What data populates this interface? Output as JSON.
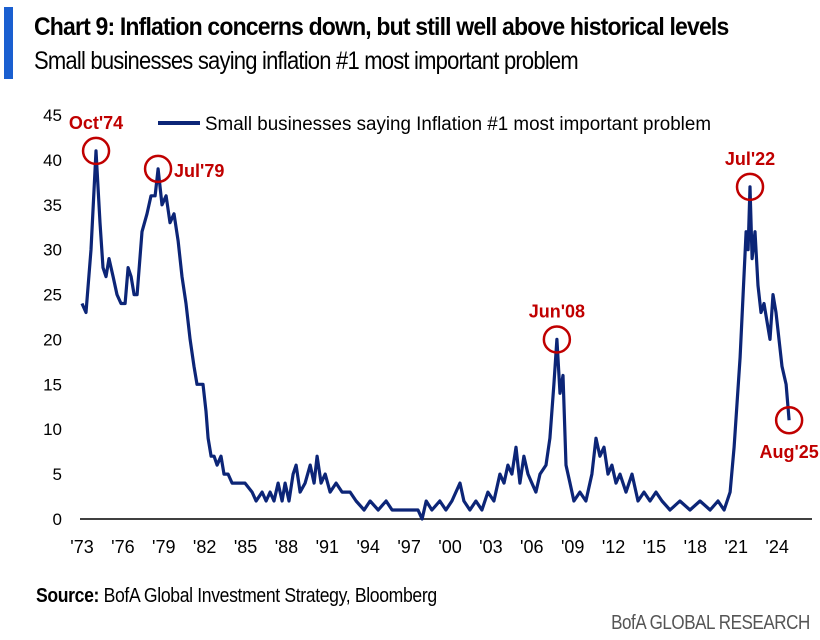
{
  "chart_data": {
    "type": "line",
    "title": "Chart 9: Inflation concerns down, but still well above historical levels",
    "subtitle": "Small businesses saying inflation #1 most important problem",
    "xlabel": "",
    "ylabel": "",
    "ylim": [
      0,
      45
    ],
    "yticks": [
      0,
      5,
      10,
      15,
      20,
      25,
      30,
      35,
      40,
      45
    ],
    "xticks": [
      {
        "year": 1973.75,
        "label": "'73"
      },
      {
        "year": 1976.75,
        "label": "'76"
      },
      {
        "year": 1979.75,
        "label": "'79"
      },
      {
        "year": 1982.75,
        "label": "'82"
      },
      {
        "year": 1985.75,
        "label": "'85"
      },
      {
        "year": 1988.75,
        "label": "'88"
      },
      {
        "year": 1991.75,
        "label": "'91"
      },
      {
        "year": 1994.75,
        "label": "'94"
      },
      {
        "year": 1997.75,
        "label": "'97"
      },
      {
        "year": 2000.75,
        "label": "'00"
      },
      {
        "year": 2003.75,
        "label": "'03"
      },
      {
        "year": 2006.75,
        "label": "'06"
      },
      {
        "year": 2009.75,
        "label": "'09"
      },
      {
        "year": 2012.75,
        "label": "'12"
      },
      {
        "year": 2015.75,
        "label": "'15"
      },
      {
        "year": 2018.75,
        "label": "'18"
      },
      {
        "year": 2021.75,
        "label": "'21"
      },
      {
        "year": 2024.75,
        "label": "'24"
      }
    ],
    "legend": "top-center",
    "grid": false,
    "series": [
      {
        "name": "Small businesses saying Inflation #1 most important problem",
        "color": "#0c2577",
        "points": [
          [
            1973.75,
            24
          ],
          [
            1974.04,
            23
          ],
          [
            1974.41,
            30
          ],
          [
            1974.78,
            41
          ],
          [
            1975.07,
            33
          ],
          [
            1975.29,
            28
          ],
          [
            1975.51,
            27
          ],
          [
            1975.73,
            29
          ],
          [
            1976.03,
            27
          ],
          [
            1976.32,
            25
          ],
          [
            1976.61,
            24
          ],
          [
            1976.91,
            24
          ],
          [
            1977.13,
            28
          ],
          [
            1977.35,
            27
          ],
          [
            1977.57,
            25
          ],
          [
            1977.79,
            25
          ],
          [
            1978.15,
            32
          ],
          [
            1978.52,
            34
          ],
          [
            1978.81,
            36
          ],
          [
            1979.11,
            36
          ],
          [
            1979.33,
            39
          ],
          [
            1979.62,
            35
          ],
          [
            1979.92,
            36
          ],
          [
            1980.21,
            33
          ],
          [
            1980.5,
            34
          ],
          [
            1980.8,
            31
          ],
          [
            1981.09,
            27
          ],
          [
            1981.38,
            24
          ],
          [
            1981.68,
            20
          ],
          [
            1981.97,
            17
          ],
          [
            1982.19,
            15
          ],
          [
            1982.63,
            15
          ],
          [
            1982.85,
            12
          ],
          [
            1983.0,
            9
          ],
          [
            1983.22,
            7
          ],
          [
            1983.44,
            7
          ],
          [
            1983.66,
            6
          ],
          [
            1983.95,
            7
          ],
          [
            1984.17,
            5
          ],
          [
            1984.47,
            5
          ],
          [
            1984.76,
            4
          ],
          [
            1985.71,
            4
          ],
          [
            1986.23,
            3
          ],
          [
            1986.52,
            2
          ],
          [
            1986.96,
            3
          ],
          [
            1987.26,
            2
          ],
          [
            1987.55,
            3
          ],
          [
            1987.84,
            2
          ],
          [
            1988.14,
            4
          ],
          [
            1988.43,
            2
          ],
          [
            1988.65,
            4
          ],
          [
            1988.94,
            2
          ],
          [
            1989.24,
            5
          ],
          [
            1989.46,
            6
          ],
          [
            1989.75,
            3
          ],
          [
            1990.12,
            4
          ],
          [
            1990.49,
            6
          ],
          [
            1990.78,
            4
          ],
          [
            1991.0,
            7
          ],
          [
            1991.29,
            4
          ],
          [
            1991.59,
            5
          ],
          [
            1991.95,
            3
          ],
          [
            1992.39,
            4
          ],
          [
            1992.83,
            3
          ],
          [
            1993.42,
            3
          ],
          [
            1993.86,
            2
          ],
          [
            1994.45,
            1
          ],
          [
            1994.89,
            2
          ],
          [
            1995.48,
            1
          ],
          [
            1996.06,
            2
          ],
          [
            1996.5,
            1
          ],
          [
            1997.09,
            1
          ],
          [
            1997.81,
            1
          ],
          [
            1998.4,
            1
          ],
          [
            1998.7,
            0
          ],
          [
            1999.0,
            2
          ],
          [
            1999.42,
            1
          ],
          [
            2000.0,
            2
          ],
          [
            2000.45,
            1
          ],
          [
            2000.89,
            2
          ],
          [
            2001.18,
            3
          ],
          [
            2001.48,
            4
          ],
          [
            2001.77,
            2
          ],
          [
            2002.21,
            1
          ],
          [
            2002.65,
            2
          ],
          [
            2003.09,
            1
          ],
          [
            2003.53,
            3
          ],
          [
            2003.97,
            2
          ],
          [
            2004.41,
            5
          ],
          [
            2004.71,
            4
          ],
          [
            2005.0,
            6
          ],
          [
            2005.29,
            5
          ],
          [
            2005.59,
            8
          ],
          [
            2005.88,
            4
          ],
          [
            2006.17,
            7
          ],
          [
            2006.47,
            5
          ],
          [
            2006.76,
            4
          ],
          [
            2007.05,
            3
          ],
          [
            2007.35,
            5
          ],
          [
            2007.79,
            6
          ],
          [
            2008.08,
            9
          ],
          [
            2008.37,
            15
          ],
          [
            2008.59,
            20
          ],
          [
            2008.82,
            14
          ],
          [
            2009.04,
            16
          ],
          [
            2009.26,
            6
          ],
          [
            2009.55,
            4
          ],
          [
            2009.84,
            2
          ],
          [
            2010.28,
            3
          ],
          [
            2010.72,
            2
          ],
          [
            2011.16,
            5
          ],
          [
            2011.46,
            9
          ],
          [
            2011.75,
            7
          ],
          [
            2012.05,
            8
          ],
          [
            2012.34,
            5
          ],
          [
            2012.63,
            6
          ],
          [
            2012.93,
            4
          ],
          [
            2013.22,
            5
          ],
          [
            2013.66,
            3
          ],
          [
            2014.1,
            5
          ],
          [
            2014.54,
            2
          ],
          [
            2014.98,
            3
          ],
          [
            2015.42,
            2
          ],
          [
            2015.86,
            3
          ],
          [
            2016.3,
            2
          ],
          [
            2016.89,
            1
          ],
          [
            2017.62,
            2
          ],
          [
            2018.36,
            1
          ],
          [
            2019.09,
            2
          ],
          [
            2019.83,
            1
          ],
          [
            2020.41,
            2
          ],
          [
            2020.86,
            1
          ],
          [
            2021.3,
            3
          ],
          [
            2021.59,
            8
          ],
          [
            2021.81,
            13
          ],
          [
            2022.03,
            18
          ],
          [
            2022.25,
            25
          ],
          [
            2022.47,
            32
          ],
          [
            2022.62,
            30
          ],
          [
            2022.76,
            37
          ],
          [
            2022.91,
            29
          ],
          [
            2023.13,
            32
          ],
          [
            2023.35,
            26
          ],
          [
            2023.57,
            23
          ],
          [
            2023.79,
            24
          ],
          [
            2024.01,
            22
          ],
          [
            2024.23,
            20
          ],
          [
            2024.45,
            25
          ],
          [
            2024.67,
            23
          ],
          [
            2024.89,
            20
          ],
          [
            2025.11,
            17
          ],
          [
            2025.41,
            15
          ],
          [
            2025.63,
            11
          ]
        ]
      }
    ],
    "annotations": [
      {
        "label": "Oct'74",
        "year": 1974.78,
        "value": 41,
        "pos": "above"
      },
      {
        "label": "Jul'79",
        "year": 1979.33,
        "value": 39,
        "pos": "right"
      },
      {
        "label": "Jun'08",
        "year": 2008.59,
        "value": 20,
        "pos": "above"
      },
      {
        "label": "Jul'22",
        "year": 2022.76,
        "value": 37,
        "pos": "above"
      },
      {
        "label": "Aug'25",
        "year": 2025.63,
        "value": 11,
        "pos": "below"
      }
    ],
    "annotation_color": "#c00000"
  },
  "footer": {
    "source_label": "Source:",
    "source_text": " BofA Global Investment Strategy, Bloomberg",
    "brand": "BofA GLOBAL RESEARCH"
  }
}
